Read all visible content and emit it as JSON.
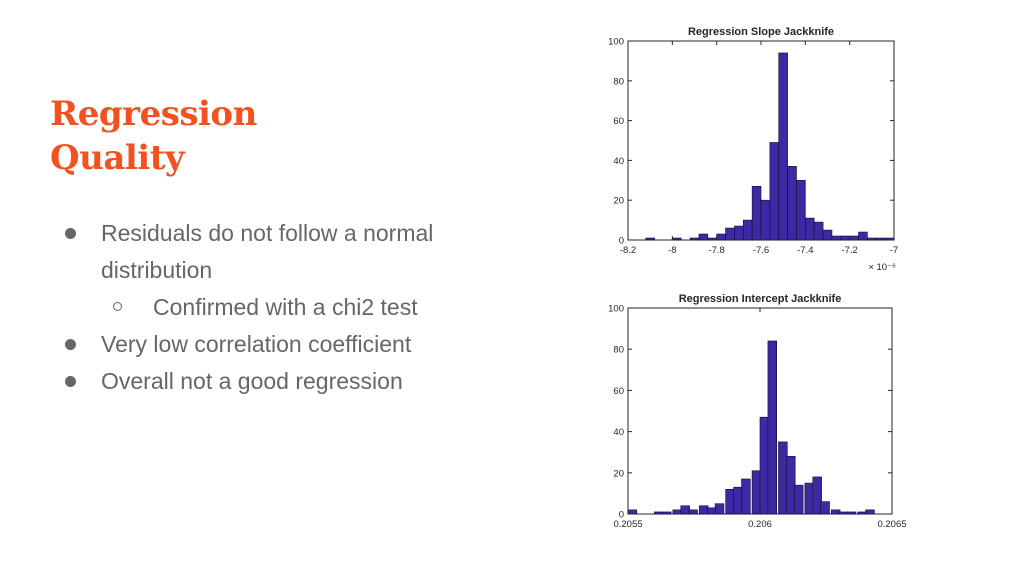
{
  "slide": {
    "title_line1": "Regression",
    "title_line2": "Quality",
    "bullets": [
      {
        "level": 0,
        "text": "Residuals do not follow a normal distribution"
      },
      {
        "level": 1,
        "text": "Confirmed with a chi2 test"
      },
      {
        "level": 0,
        "text": "Very low correlation coefficient"
      },
      {
        "level": 0,
        "text": "Overall not a good regression"
      }
    ]
  },
  "colors": {
    "title": "#f4511e",
    "bullet_text": "#666666",
    "bar_fill": "#3c2aa5",
    "bar_edge": "#0d0d2e"
  },
  "chart_data": [
    {
      "type": "bar",
      "title": "Regression Slope Jackknife",
      "xlabel": "",
      "ylabel": "",
      "xlim": [
        -8.2,
        -7.0
      ],
      "ylim": [
        0,
        100
      ],
      "x_ticks": [
        -8.2,
        -8,
        -7.8,
        -7.6,
        -7.4,
        -7.2,
        -7
      ],
      "x_tick_labels": [
        "-8.2",
        "-8",
        "-7.8",
        "-7.6",
        "-7.4",
        "-7.2",
        "-7"
      ],
      "y_ticks": [
        0,
        20,
        40,
        60,
        80,
        100
      ],
      "x_exponent_label": "× 10⁻⁶",
      "grid": false,
      "bin_width": 0.04,
      "bin_left_edges": [
        -8.2,
        -8.16,
        -8.12,
        -8.08,
        -8.04,
        -8.0,
        -7.96,
        -7.92,
        -7.88,
        -7.84,
        -7.8,
        -7.76,
        -7.72,
        -7.68,
        -7.64,
        -7.6,
        -7.56,
        -7.52,
        -7.48,
        -7.44,
        -7.4,
        -7.36,
        -7.32,
        -7.28,
        -7.24,
        -7.2,
        -7.16,
        -7.12,
        -7.08,
        -7.04
      ],
      "values": [
        0,
        0,
        1,
        0,
        0,
        1,
        0,
        1,
        3,
        1,
        3,
        6,
        7,
        10,
        27,
        20,
        49,
        94,
        37,
        30,
        11,
        9,
        5,
        2,
        2,
        2,
        4,
        1,
        1,
        1
      ]
    },
    {
      "type": "bar",
      "title": "Regression Intercept Jackknife",
      "xlabel": "",
      "ylabel": "",
      "xlim": [
        0.2055,
        0.2065
      ],
      "ylim": [
        0,
        100
      ],
      "x_ticks": [
        0.2055,
        0.206,
        0.2065
      ],
      "x_tick_labels": [
        "0.2055",
        "0.206",
        "0.2065"
      ],
      "y_ticks": [
        0,
        20,
        40,
        60,
        80,
        100
      ],
      "grid": false,
      "bin_width": 3.33e-05,
      "bin_left_edges": [
        0.2055,
        0.20553,
        0.20557,
        0.2056,
        0.20563,
        0.20567,
        0.2057,
        0.20573,
        0.20577,
        0.2058,
        0.20583,
        0.20587,
        0.2059,
        0.20593,
        0.20597,
        0.206,
        0.20603,
        0.20607,
        0.2061,
        0.20613,
        0.20617,
        0.2062,
        0.20623,
        0.20627,
        0.2063,
        0.20633,
        0.20637,
        0.2064,
        0.20643,
        0.20647
      ],
      "values": [
        2,
        0,
        0,
        1,
        1,
        2,
        4,
        2,
        4,
        3,
        5,
        12,
        13,
        17,
        21,
        47,
        84,
        35,
        28,
        14,
        15,
        18,
        6,
        2,
        1,
        1,
        1,
        2,
        0,
        0
      ]
    }
  ]
}
